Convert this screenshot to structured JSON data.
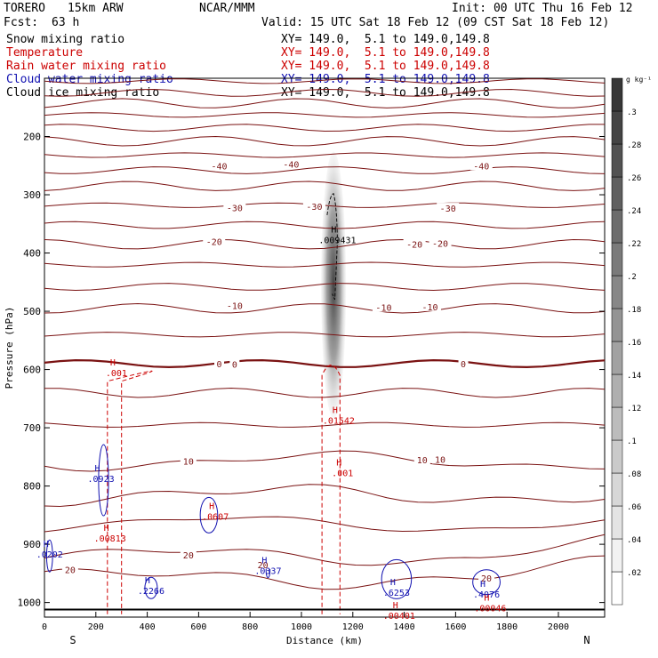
{
  "header": {
    "model": "TORERO",
    "resolution": "15km ARW",
    "org": "NCAR/MMM",
    "init": "Init: 00 UTC Thu 16 Feb 12",
    "fcst_label": "Fcst:",
    "fcst_value": "63 h",
    "valid": "Valid: 15 UTC Sat 18 Feb 12 (09 CST Sat 18 Feb 12)"
  },
  "fields": [
    {
      "name": "Snow mixing ratio",
      "color": "#000000",
      "xy": "XY= 149.0,  5.1 to 149.0,149.8"
    },
    {
      "name": "Temperature",
      "color": "#cc0000",
      "xy": "XY= 149.0,  5.1 to 149.0,149.8"
    },
    {
      "name": "Rain water mixing ratio",
      "color": "#cc0000",
      "xy": "XY= 149.0,  5.1 to 149.0,149.8"
    },
    {
      "name": "Cloud water mixing ratio",
      "color": "#1010b0",
      "xy": "XY= 149.0,  5.1 to 149.0,149.8"
    },
    {
      "name": "Cloud ice mixing ratio",
      "color": "#000000",
      "xy": "XY= 149.0,  5.1 to 149.0,149.8"
    }
  ],
  "chart_data": {
    "type": "contour",
    "xlabel": "Distance (km)",
    "ylabel": "Pressure (hPa)",
    "xlim": [
      0,
      2180
    ],
    "ylim": [
      1025,
      100
    ],
    "x_ticks": [
      0,
      200,
      400,
      600,
      800,
      1000,
      1200,
      1400,
      1600,
      1800,
      2000
    ],
    "y_ticks": [
      200,
      300,
      400,
      500,
      600,
      700,
      800,
      900,
      1000
    ],
    "x_end_labels": [
      "S",
      "N"
    ],
    "colorbar": {
      "unit": "g kg⁻¹",
      "levels": [
        0.02,
        0.04,
        0.06,
        0.08,
        0.1,
        0.12,
        0.14,
        0.16,
        0.18,
        0.2,
        0.22,
        0.24,
        0.26,
        0.28,
        0.3
      ],
      "labels": [
        ".02",
        ".04",
        ".06",
        ".08",
        ".1",
        ".12",
        ".14",
        ".16",
        ".18",
        ".2",
        ".22",
        ".24",
        ".26",
        ".28",
        ".3"
      ]
    },
    "temperature_labels": [
      {
        "text": "-40",
        "x": 680,
        "p": 250
      },
      {
        "text": "-40",
        "x": 960,
        "p": 247
      },
      {
        "text": "-40",
        "x": 1700,
        "p": 250
      },
      {
        "text": "-30",
        "x": 740,
        "p": 322
      },
      {
        "text": "-30",
        "x": 1050,
        "p": 320
      },
      {
        "text": "-30",
        "x": 1570,
        "p": 323
      },
      {
        "text": "-20",
        "x": 660,
        "p": 380
      },
      {
        "text": "-20",
        "x": 1440,
        "p": 385
      },
      {
        "text": "-20",
        "x": 1540,
        "p": 383
      },
      {
        "text": "-10",
        "x": 740,
        "p": 490
      },
      {
        "text": "-10",
        "x": 1320,
        "p": 493
      },
      {
        "text": "-10",
        "x": 1500,
        "p": 492
      },
      {
        "text": "0",
        "x": 680,
        "p": 590
      },
      {
        "text": "0",
        "x": 740,
        "p": 591
      },
      {
        "text": "0",
        "x": 1630,
        "p": 590
      },
      {
        "text": "10",
        "x": 560,
        "p": 757
      },
      {
        "text": "10",
        "x": 1470,
        "p": 755
      },
      {
        "text": "10",
        "x": 1540,
        "p": 754
      },
      {
        "text": "20",
        "x": 100,
        "p": 943
      },
      {
        "text": "20",
        "x": 560,
        "p": 918
      },
      {
        "text": "20",
        "x": 850,
        "p": 935
      },
      {
        "text": "20",
        "x": 1720,
        "p": 958
      }
    ],
    "maxima": [
      {
        "text": ".009431",
        "x": 1140,
        "p": 380,
        "color": "#000000"
      },
      {
        "text": ".001",
        "x": 280,
        "p": 608,
        "color": "#cc0000"
      },
      {
        "text": ".01542",
        "x": 1145,
        "p": 690,
        "color": "#cc0000"
      },
      {
        "text": ".001",
        "x": 1160,
        "p": 780,
        "color": "#cc0000"
      },
      {
        "text": ".0923",
        "x": 220,
        "p": 790,
        "color": "#1010b0"
      },
      {
        "text": ".00813",
        "x": 255,
        "p": 892,
        "color": "#cc0000"
      },
      {
        "text": ".0607",
        "x": 665,
        "p": 855,
        "color": "#cc0000"
      },
      {
        "text": ".0202",
        "x": 20,
        "p": 920,
        "color": "#1010b0"
      },
      {
        "text": ".0337",
        "x": 870,
        "p": 948,
        "color": "#1010b0"
      },
      {
        "text": ".2266",
        "x": 415,
        "p": 982,
        "color": "#1010b0"
      },
      {
        "text": ".6253",
        "x": 1370,
        "p": 985,
        "color": "#1010b0"
      },
      {
        "text": ".00401",
        "x": 1380,
        "p": 1025,
        "color": "#cc0000"
      },
      {
        "text": ".4076",
        "x": 1720,
        "p": 988,
        "color": "#1010b0"
      },
      {
        "text": ".00046",
        "x": 1735,
        "p": 1012,
        "color": "#cc0000"
      }
    ]
  }
}
